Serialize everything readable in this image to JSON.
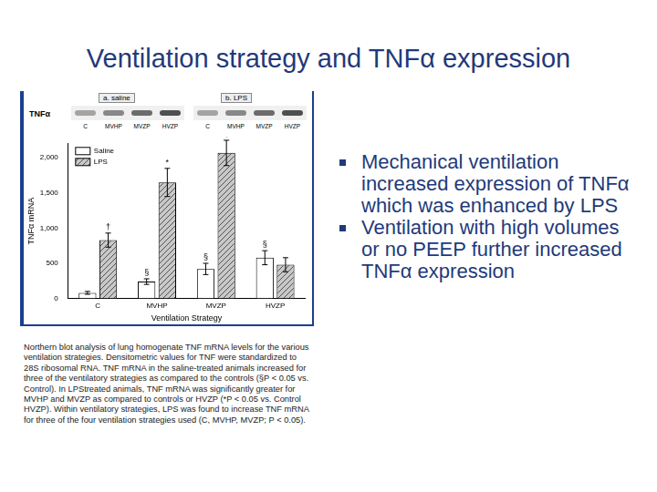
{
  "title": "Ventilation strategy and TNFα expression",
  "bullets": [
    "Mechanical ventilation increased expression of TNFα which was enhanced by LPS",
    "Ventilation with high volumes or no PEEP further increased TNFα expression"
  ],
  "caption": "Northern blot analysis of lung homogenate TNF mRNA levels for the various ventilation strategies. Densitometric values for TNF were standardized to 28S ribosomal RNA. TNF mRNA in the saline-treated animals increased for three of the ventilatory strategies as compared to the controls (§P < 0.05 vs. Control). In LPStreated animals, TNF mRNA was significantly greater for MVHP and MVZP as compared to controls or HVZP (*P < 0.05 vs. Control HVZP). Within ventilatory strategies, LPS was found to increase TNF mRNA for three of the four ventilation strategies used (C, MVHP, MVZP; P < 0.05).",
  "blot": {
    "label": "TNFα",
    "panels": [
      {
        "title": "a. saline",
        "lanes": [
          "C",
          "MVHP",
          "MVZP",
          "HVZP"
        ]
      },
      {
        "title": "b. LPS",
        "lanes": [
          "C",
          "MVHP",
          "MVZP",
          "HVZP"
        ]
      }
    ]
  },
  "chart_data": {
    "type": "bar",
    "x_label": "Ventilation Strategy",
    "y_label": "TNFα mRNA",
    "categories": [
      "C",
      "MVHP",
      "MVZP",
      "HVZP"
    ],
    "series": [
      {
        "name": "Saline",
        "color": "#ffffff",
        "values": [
          80,
          240,
          420,
          580
        ],
        "errors": [
          20,
          40,
          80,
          100
        ],
        "annotations": [
          null,
          "§",
          "§",
          "§"
        ]
      },
      {
        "name": "LPS",
        "color": "#c8c8c8",
        "values": [
          830,
          1650,
          2070,
          480
        ],
        "errors": [
          100,
          200,
          180,
          100
        ],
        "annotations": [
          "†",
          "*",
          "‡",
          null
        ]
      }
    ],
    "ylim": [
      0,
      2200
    ],
    "yticks": [
      0,
      500,
      {
        "value": 1000,
        "label": "1,000"
      },
      {
        "value": 1500,
        "label": "1,500"
      },
      {
        "value": 2000,
        "label": "2,000"
      }
    ],
    "grid": false,
    "legend": "upper left"
  }
}
